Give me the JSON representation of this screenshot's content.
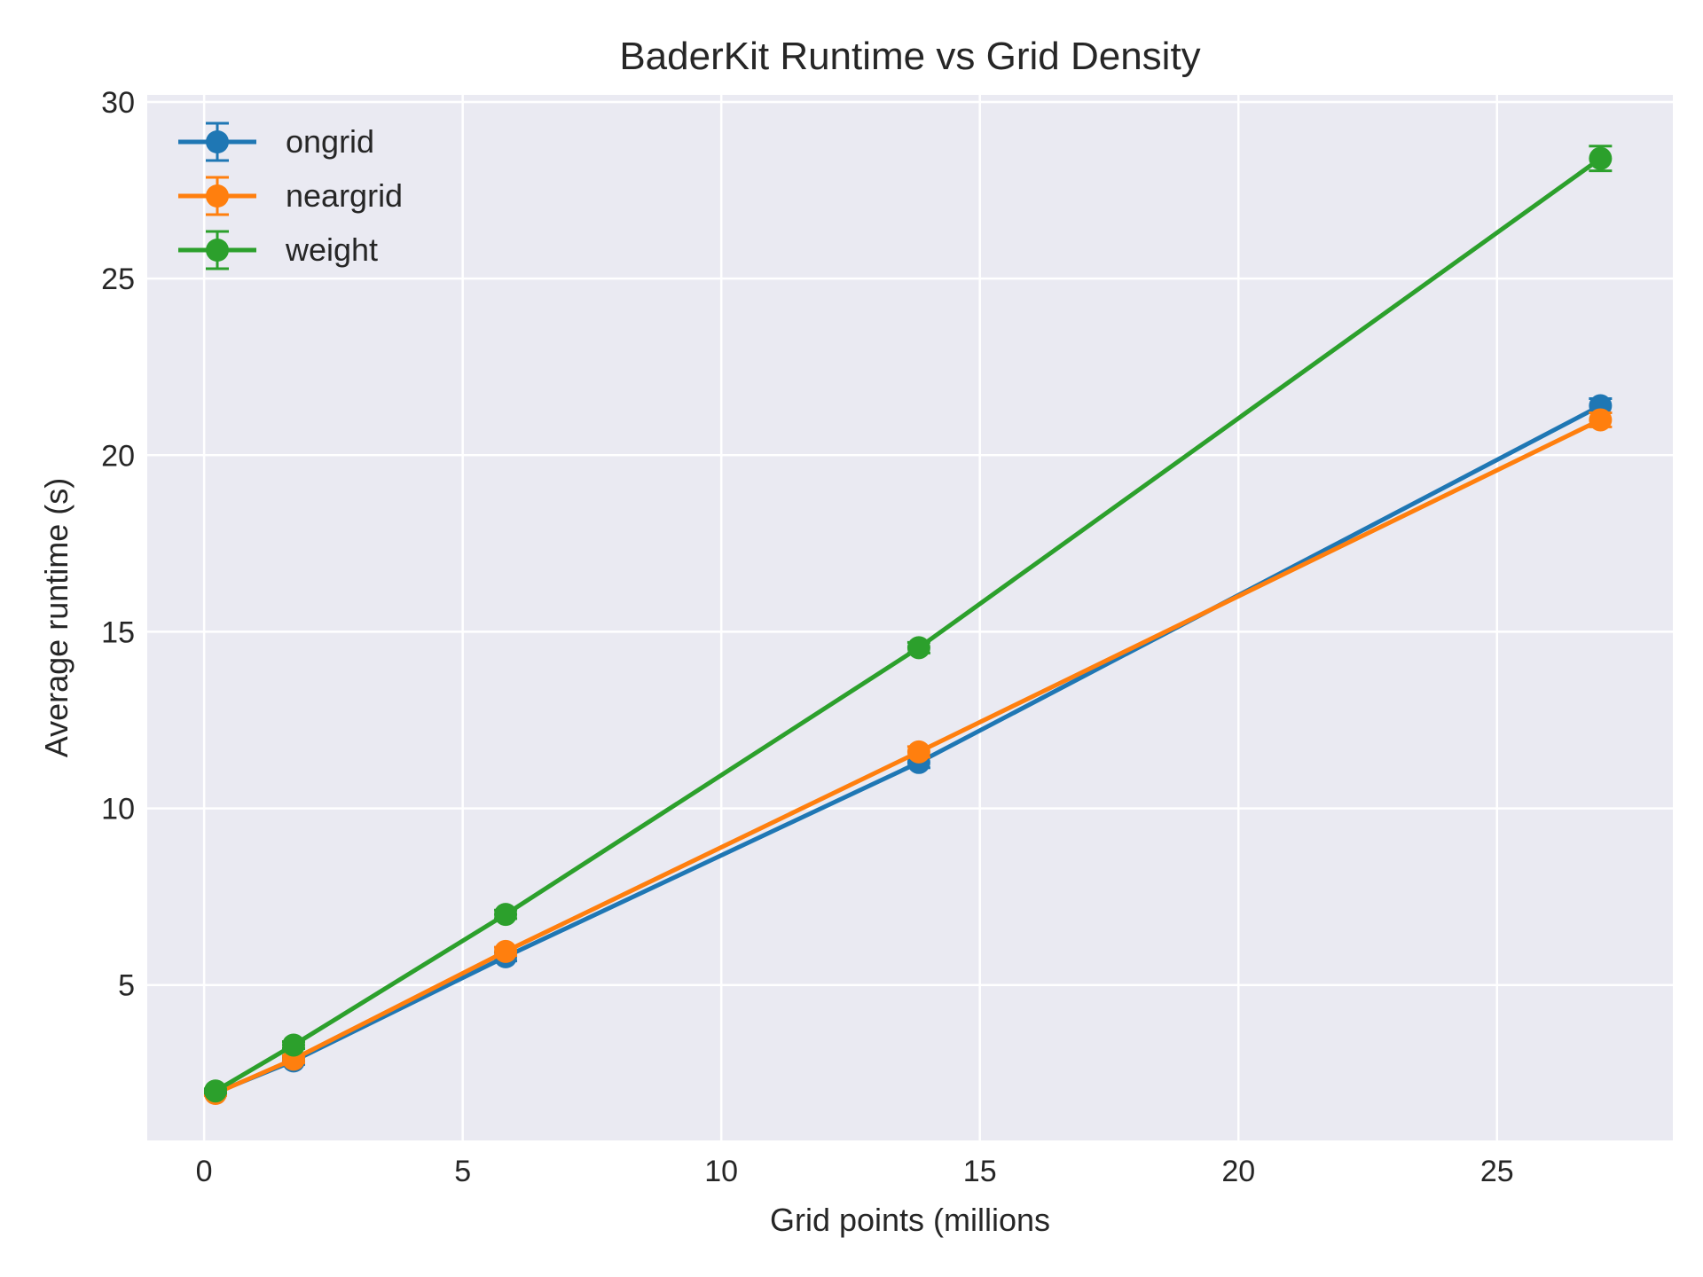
{
  "chart_data": {
    "type": "line",
    "title": "BaderKit Runtime vs Grid Density",
    "xlabel": "Grid points (millions",
    "ylabel": "Average runtime (s)",
    "xlim": [
      -1.1,
      28.4
    ],
    "ylim": [
      0.6,
      30.2
    ],
    "xticks": [
      0,
      5,
      10,
      15,
      20,
      25
    ],
    "yticks": [
      5,
      10,
      15,
      20,
      25,
      30
    ],
    "grid": true,
    "legend_position": "top-left",
    "x": [
      0.22,
      1.73,
      5.83,
      13.82,
      27.0
    ],
    "series": [
      {
        "name": "ongrid",
        "color": "#1f77b4",
        "values": [
          1.95,
          2.85,
          5.8,
          11.3,
          21.4
        ],
        "errors": [
          0.06,
          0.1,
          0.12,
          0.15,
          0.2
        ]
      },
      {
        "name": "neargrid",
        "color": "#ff7f0e",
        "values": [
          1.93,
          2.9,
          5.95,
          11.6,
          21.0
        ],
        "errors": [
          0.06,
          0.1,
          0.12,
          0.15,
          0.2
        ]
      },
      {
        "name": "weight",
        "color": "#2ca02c",
        "values": [
          2.0,
          3.3,
          7.0,
          14.55,
          28.4
        ],
        "errors": [
          0.06,
          0.1,
          0.12,
          0.15,
          0.35
        ]
      }
    ],
    "style": {
      "background": "#eaeaf2",
      "grid_color": "#ffffff"
    }
  }
}
